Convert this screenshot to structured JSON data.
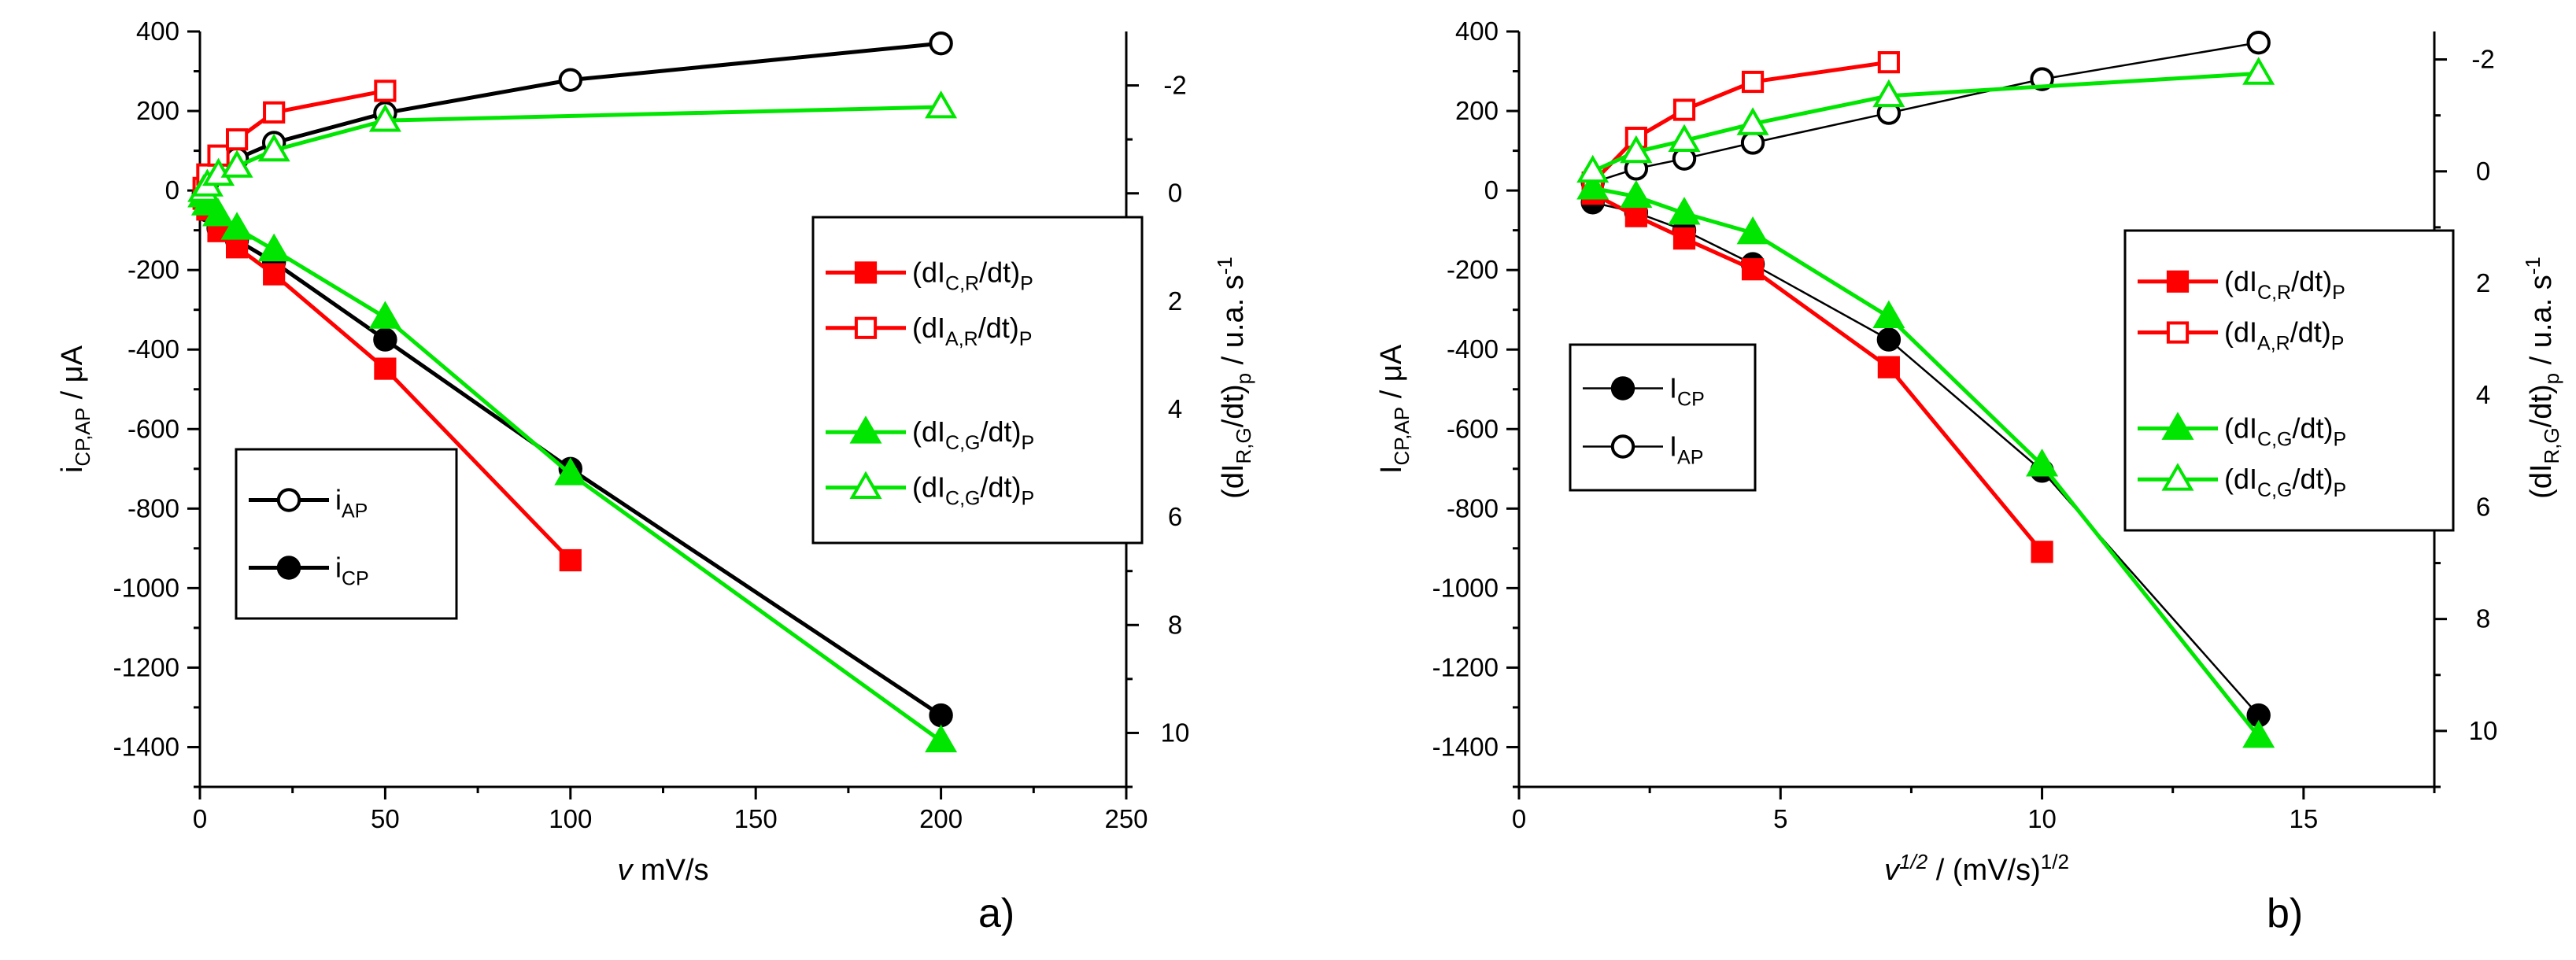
{
  "panel_labels": {
    "a": "a)",
    "b": "b)"
  },
  "chart_data": [
    {
      "type": "line",
      "panel": "a)",
      "xlabel": {
        "italic": "v",
        "rest": " mV/s"
      },
      "ylabel": {
        "main": "i",
        "sub": "CP,AP",
        "rest": " / μA"
      },
      "y2label": {
        "pre": "(dI",
        "sub1": "R,G",
        "mid": "/dt)",
        "sub2": "p",
        "post": " / u.a. s",
        "sup": "-1"
      },
      "xlim": [
        0,
        250
      ],
      "xticks": [
        0,
        50,
        100,
        150,
        200,
        250
      ],
      "ylim": [
        -1500,
        400
      ],
      "yticks": [
        400,
        200,
        0,
        -200,
        -400,
        -600,
        -800,
        -1000,
        -1200,
        -1400
      ],
      "y2lim": [
        11,
        -3
      ],
      "y2ticks": [
        -2,
        0,
        2,
        4,
        6,
        8,
        10
      ],
      "series": [
        {
          "key": "iAP",
          "axis": "left",
          "color": "#000000",
          "marker": "circle",
          "filled": false,
          "x": [
            1,
            2,
            5,
            10,
            20,
            50,
            100,
            200
          ],
          "y": [
            -10,
            20,
            50,
            80,
            120,
            195,
            278,
            370
          ]
        },
        {
          "key": "iCP",
          "axis": "left",
          "color": "#000000",
          "marker": "circle",
          "filled": true,
          "x": [
            1,
            2,
            5,
            10,
            20,
            50,
            100,
            200
          ],
          "y": [
            -25,
            -50,
            -95,
            -125,
            -180,
            -375,
            -700,
            -1320
          ]
        },
        {
          "key": "dICR",
          "axis": "right",
          "color": "#ff0000",
          "marker": "square",
          "filled": true,
          "x": [
            1,
            2,
            5,
            10,
            20,
            50,
            100
          ],
          "y": [
            0.1,
            0.3,
            0.7,
            1.0,
            1.5,
            3.25,
            6.8
          ]
        },
        {
          "key": "dIAR",
          "axis": "right",
          "color": "#ff0000",
          "marker": "square",
          "filled": false,
          "x": [
            1,
            2,
            5,
            10,
            20,
            50
          ],
          "y": [
            -0.1,
            -0.35,
            -0.7,
            -1.0,
            -1.5,
            -1.9
          ]
        },
        {
          "key": "dICG_f",
          "axis": "right",
          "color": "#00e600",
          "marker": "triangle",
          "filled": true,
          "x": [
            1,
            2,
            5,
            10,
            20,
            50,
            100,
            200
          ],
          "y": [
            0.05,
            0.2,
            0.4,
            0.65,
            1.05,
            2.3,
            5.2,
            10.15
          ]
        },
        {
          "key": "dICG_o",
          "axis": "right",
          "color": "#00e600",
          "marker": "triangle",
          "filled": false,
          "x": [
            1,
            2,
            5,
            10,
            20,
            50,
            200
          ],
          "y": [
            -0.05,
            -0.15,
            -0.35,
            -0.5,
            -0.8,
            -1.35,
            -1.6
          ]
        }
      ],
      "legends": [
        {
          "entries": [
            {
              "series": "iAP",
              "main": "i",
              "sub": "AP",
              "tail": ""
            },
            {
              "series": "iCP",
              "main": "i",
              "sub": "CP",
              "tail": ""
            }
          ]
        },
        {
          "entries": [
            {
              "series": "dICR",
              "main": "(dI",
              "sub": "C,R",
              "tail": "/dt)",
              "sub2": "P"
            },
            {
              "series": "dIAR",
              "main": "(dI",
              "sub": "A,R",
              "tail": "/dt)",
              "sub2": "P"
            },
            {
              "series": "dICG_f",
              "main": "(dI",
              "sub": "C,G",
              "tail": "/dt)",
              "sub2": "P"
            },
            {
              "series": "dICG_o",
              "main": "(dI",
              "sub": "C,G",
              "tail": "/dt)",
              "sub2": "P"
            }
          ]
        }
      ]
    },
    {
      "type": "line",
      "panel": "b)",
      "xlabel": {
        "italic": "v",
        "sup": "1/2",
        "rest": " / (mV/s)",
        "sup2": "1/2"
      },
      "ylabel": {
        "main": "I",
        "sub": "CP,AP",
        "rest": " / μA"
      },
      "y2label": {
        "pre": "(dI",
        "sub1": "R,G",
        "mid": "/dt)",
        "sub2": "p",
        "post": " / u.a. s",
        "sup": "-1"
      },
      "xlim": [
        0,
        17.5
      ],
      "xticks": [
        0,
        5,
        10,
        15
      ],
      "ylim": [
        -1500,
        400
      ],
      "yticks": [
        400,
        200,
        0,
        -200,
        -400,
        -600,
        -800,
        -1000,
        -1200,
        -1400
      ],
      "y2lim": [
        11,
        -2.5
      ],
      "y2ticks": [
        -2,
        0,
        2,
        4,
        6,
        8,
        10
      ],
      "series": [
        {
          "key": "iCP",
          "axis": "left",
          "color": "#000000",
          "marker": "circle",
          "filled": true,
          "thin": true,
          "x": [
            1.41,
            2.24,
            3.16,
            4.47,
            7.07,
            10,
            14.14
          ],
          "y": [
            -30,
            -55,
            -100,
            -185,
            -375,
            -705,
            -1320
          ]
        },
        {
          "key": "iAP",
          "axis": "left",
          "color": "#000000",
          "marker": "circle",
          "filled": false,
          "thin": true,
          "x": [
            1.41,
            2.24,
            3.16,
            4.47,
            7.07,
            10,
            14.14
          ],
          "y": [
            20,
            55,
            80,
            120,
            195,
            280,
            372
          ]
        },
        {
          "key": "dICR",
          "axis": "right",
          "color": "#ff0000",
          "marker": "square",
          "filled": true,
          "x": [
            1.41,
            2.24,
            3.16,
            4.47,
            7.07,
            10
          ],
          "y": [
            0.4,
            0.8,
            1.2,
            1.75,
            3.5,
            6.8
          ]
        },
        {
          "key": "dIAR",
          "axis": "right",
          "color": "#ff0000",
          "marker": "square",
          "filled": false,
          "x": [
            1.41,
            2.24,
            3.16,
            4.47,
            7.07
          ],
          "y": [
            0.2,
            -0.6,
            -1.1,
            -1.6,
            -1.95
          ]
        },
        {
          "key": "dICG_f",
          "axis": "right",
          "color": "#00e600",
          "marker": "triangle",
          "filled": true,
          "x": [
            1.41,
            2.24,
            3.16,
            4.47,
            7.07,
            10,
            14.14
          ],
          "y": [
            0.3,
            0.45,
            0.75,
            1.1,
            2.6,
            5.25,
            10.1
          ]
        },
        {
          "key": "dICG_o",
          "axis": "right",
          "color": "#00e600",
          "marker": "triangle",
          "filled": false,
          "x": [
            1.41,
            2.24,
            3.16,
            4.47,
            7.07,
            14.14
          ],
          "y": [
            0,
            -0.35,
            -0.55,
            -0.85,
            -1.35,
            -1.75
          ]
        }
      ],
      "legends": [
        {
          "entries": [
            {
              "series": "iCP",
              "main": "I",
              "sub": "CP",
              "tail": ""
            },
            {
              "series": "iAP",
              "main": "I",
              "sub": "AP",
              "tail": ""
            }
          ]
        },
        {
          "entries": [
            {
              "series": "dICR",
              "main": "(dI",
              "sub": "C,R",
              "tail": "/dt)",
              "sub2": "P"
            },
            {
              "series": "dIAR",
              "main": "(dI",
              "sub": "A,R",
              "tail": "/dt)",
              "sub2": "P"
            },
            {
              "series": "dICG_f",
              "main": "(dI",
              "sub": "C,G",
              "tail": "/dt)",
              "sub2": "P"
            },
            {
              "series": "dICG_o",
              "main": "(dI",
              "sub": "C,G",
              "tail": "/dt)",
              "sub2": "P"
            }
          ]
        }
      ]
    }
  ]
}
